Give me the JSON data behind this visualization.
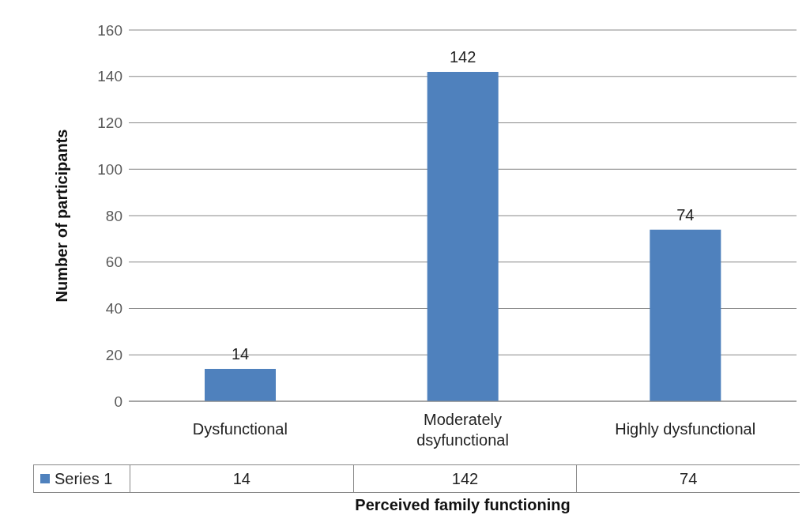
{
  "chart_data": {
    "type": "bar",
    "xlabel": "Perceived family functioning",
    "ylabel": "Number of participants",
    "categories": [
      "Dysfunctional",
      "Moderately dsyfunctional",
      "Highly dysfunctional"
    ],
    "series": [
      {
        "name": "Series 1",
        "color": "#4f81bd",
        "values": [
          14,
          142,
          74
        ],
        "value_labels": [
          "14",
          "142",
          "74"
        ]
      }
    ],
    "annotations": [
      "14",
      "142",
      "74"
    ],
    "ylim": [
      0,
      160
    ],
    "yticks": [
      0,
      20,
      40,
      60,
      80,
      100,
      120,
      140,
      160
    ],
    "grid": "y",
    "data_labels": true
  }
}
